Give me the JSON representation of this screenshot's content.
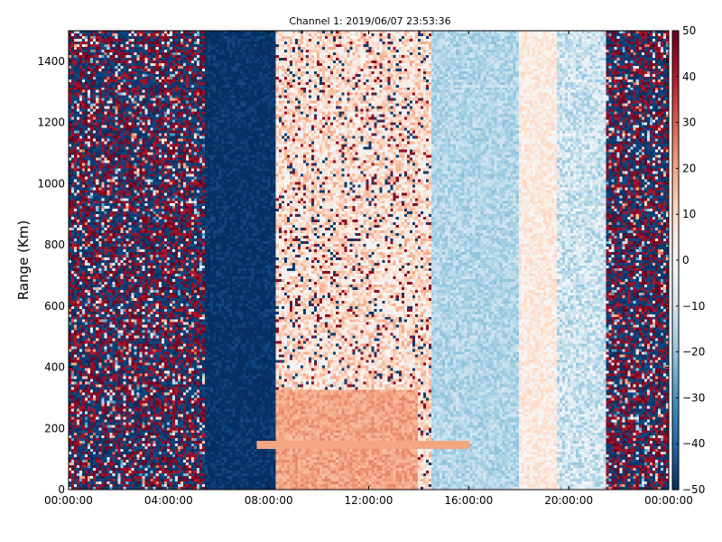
{
  "chart_data": {
    "type": "heatmap",
    "title": "Channel 1: 2019/06/07 23:53:36",
    "xlabel": "",
    "ylabel": "Range (Km)",
    "x_tick_labels": [
      "00:00:00",
      "04:00:00",
      "08:00:00",
      "12:00:00",
      "16:00:00",
      "20:00:00",
      "00:00:00"
    ],
    "x_range_hours": [
      0,
      24
    ],
    "y_ticks": [
      0,
      200,
      400,
      600,
      800,
      1000,
      1200,
      1400
    ],
    "ylim": [
      0,
      1500
    ],
    "colorbar": {
      "ticks": [
        -50,
        -40,
        -30,
        -20,
        -10,
        0,
        10,
        20,
        30,
        40,
        50
      ],
      "range": [
        -50,
        50
      ],
      "colormap": "RdBu_r",
      "colors": [
        "#053061",
        "#2166ac",
        "#4393c3",
        "#92c5de",
        "#d1e5f0",
        "#f7f7f7",
        "#fddbc7",
        "#f4a582",
        "#d6604d",
        "#b2182b",
        "#67001f"
      ]
    },
    "profile": [
      {
        "start_h": 0.0,
        "end_h": 5.5,
        "regime": "noise",
        "mean": 0,
        "spread": 60
      },
      {
        "start_h": 5.5,
        "end_h": 8.3,
        "regime": "strong-negative",
        "mean": -50,
        "spread": 5
      },
      {
        "start_h": 8.3,
        "end_h": 14.5,
        "regime": "speckled-positive",
        "mean": 8,
        "spread": 12
      },
      {
        "start_h": 14.5,
        "end_h": 18.0,
        "regime": "weak-negative",
        "mean": -15,
        "spread": 6
      },
      {
        "start_h": 18.0,
        "end_h": 19.5,
        "regime": "weak-positive",
        "mean": 5,
        "spread": 6
      },
      {
        "start_h": 19.5,
        "end_h": 21.5,
        "regime": "mixed",
        "mean": -10,
        "spread": 10
      },
      {
        "start_h": 21.5,
        "end_h": 24.0,
        "regime": "noise",
        "mean": 0,
        "spread": 60
      }
    ]
  }
}
